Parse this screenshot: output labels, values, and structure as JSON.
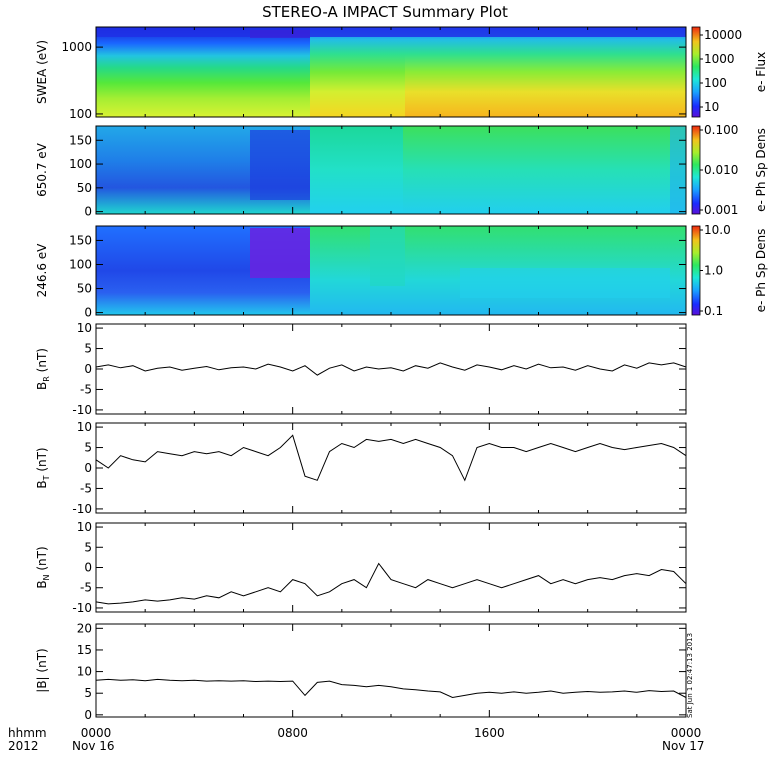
{
  "title": "STEREO-A IMPACT Summary Plot",
  "footer": {
    "hhmm_label": "hhmm",
    "year_label": "2012",
    "x_ticks": [
      "0000",
      "0800",
      "1600",
      "0000"
    ],
    "date_start": "Nov 16",
    "date_end": "Nov 17"
  },
  "timestamp": "Sat Jun 1 02:47:13 2013",
  "chart_data": [
    {
      "type": "heatmap",
      "ylabel": "SWEA (eV)",
      "yscale": "log",
      "ylim": [
        90,
        2000
      ],
      "yticks": [
        "1000",
        "100"
      ],
      "colorbar_label": "e- Flux",
      "colorbar_scale": "log",
      "colorbar_ticks": [
        "10000",
        "1000",
        "100",
        "10"
      ],
      "x_hours": [
        0,
        8,
        24
      ],
      "description_bands": [
        {
          "t_start": 0,
          "t_end": 8.3,
          "low_energy_level": "green-yellow",
          "high_energy_level": "blue"
        },
        {
          "t_start": 8.3,
          "t_end": 12.3,
          "low_energy_level": "yellow",
          "high_energy_level": "cyan"
        },
        {
          "t_start": 12.3,
          "t_end": 24,
          "low_energy_level": "orange",
          "high_energy_level": "cyan"
        }
      ]
    },
    {
      "type": "heatmap",
      "ylabel": "650.7 eV",
      "ylim": [
        -5,
        180
      ],
      "yticks": [
        "150",
        "100",
        "50",
        "0"
      ],
      "colorbar_label": "e- Ph Sp Dens",
      "colorbar_scale": "log",
      "colorbar_ticks": [
        "0.100",
        "0.010",
        "0.001"
      ]
    },
    {
      "type": "heatmap",
      "ylabel": "246.6 eV",
      "ylim": [
        -5,
        180
      ],
      "yticks": [
        "150",
        "100",
        "50",
        "0"
      ],
      "colorbar_label": "e- Ph Sp Dens",
      "colorbar_scale": "log",
      "colorbar_ticks": [
        "10.0",
        "1.0",
        "0.1"
      ]
    },
    {
      "type": "line",
      "ylabel_main": "B",
      "ylabel_sub": "R",
      "ylabel_unit": "(nT)",
      "ylim": [
        -11,
        11
      ],
      "yticks": [
        "10",
        "5",
        "0",
        "-5",
        "-10"
      ],
      "x": [
        0,
        0.5,
        1,
        1.5,
        2,
        2.5,
        3,
        3.5,
        4,
        4.5,
        5,
        5.5,
        6,
        6.5,
        7,
        7.5,
        8,
        8.5,
        9,
        9.5,
        10,
        10.5,
        11,
        11.5,
        12,
        12.5,
        13,
        13.5,
        14,
        14.5,
        15,
        15.5,
        16,
        16.5,
        17,
        17.5,
        18,
        18.5,
        19,
        19.5,
        20,
        20.5,
        21,
        21.5,
        22,
        22.5,
        23,
        23.5,
        24
      ],
      "y": [
        0.5,
        1,
        0.3,
        0.8,
        -0.5,
        0.2,
        0.5,
        -0.3,
        0.2,
        0.6,
        -0.2,
        0.3,
        0.5,
        0,
        1.2,
        0.5,
        -0.5,
        0.8,
        -1.5,
        0.2,
        1,
        -0.5,
        0.5,
        0,
        0.3,
        -0.5,
        0.8,
        0.2,
        1.5,
        0.5,
        -0.3,
        1,
        0.5,
        -0.2,
        0.8,
        0,
        1.2,
        0.3,
        0.5,
        -0.3,
        0.8,
        0,
        -0.5,
        1,
        0.2,
        1.5,
        1,
        1.5,
        0.5
      ]
    },
    {
      "type": "line",
      "ylabel_main": "B",
      "ylabel_sub": "T",
      "ylabel_unit": "(nT)",
      "ylim": [
        -11,
        11
      ],
      "yticks": [
        "10",
        "5",
        "0",
        "-5",
        "-10"
      ],
      "x": [
        0,
        0.5,
        1,
        1.5,
        2,
        2.5,
        3,
        3.5,
        4,
        4.5,
        5,
        5.5,
        6,
        6.5,
        7,
        7.5,
        8,
        8.5,
        9,
        9.5,
        10,
        10.5,
        11,
        11.5,
        12,
        12.5,
        13,
        13.5,
        14,
        14.5,
        15,
        15.5,
        16,
        16.5,
        17,
        17.5,
        18,
        18.5,
        19,
        19.5,
        20,
        20.5,
        21,
        21.5,
        22,
        22.5,
        23,
        23.5,
        24
      ],
      "y": [
        2,
        0,
        3,
        2,
        1.5,
        4,
        3.5,
        3,
        4,
        3.5,
        4,
        3,
        5,
        4,
        3,
        5,
        8,
        -2,
        -3,
        4,
        6,
        5,
        7,
        6.5,
        7,
        6,
        7,
        6,
        5,
        3,
        -3,
        5,
        6,
        5,
        5,
        4,
        5,
        6,
        5,
        4,
        5,
        6,
        5,
        4.5,
        5,
        5.5,
        6,
        5,
        3
      ]
    },
    {
      "type": "line",
      "ylabel_main": "B",
      "ylabel_sub": "N",
      "ylabel_unit": "(nT)",
      "ylim": [
        -11,
        11
      ],
      "yticks": [
        "10",
        "5",
        "0",
        "-5",
        "-10"
      ],
      "x": [
        0,
        0.5,
        1,
        1.5,
        2,
        2.5,
        3,
        3.5,
        4,
        4.5,
        5,
        5.5,
        6,
        6.5,
        7,
        7.5,
        8,
        8.5,
        9,
        9.5,
        10,
        10.5,
        11,
        11.5,
        12,
        12.5,
        13,
        13.5,
        14,
        14.5,
        15,
        15.5,
        16,
        16.5,
        17,
        17.5,
        18,
        18.5,
        19,
        19.5,
        20,
        20.5,
        21,
        21.5,
        22,
        22.5,
        23,
        23.5,
        24
      ],
      "y": [
        -8.5,
        -9,
        -8.8,
        -8.5,
        -8,
        -8.3,
        -8,
        -7.5,
        -7.8,
        -7,
        -7.5,
        -6,
        -7,
        -6,
        -5,
        -6,
        -3,
        -4,
        -7,
        -6,
        -4,
        -3,
        -5,
        1,
        -3,
        -4,
        -5,
        -3,
        -4,
        -5,
        -4,
        -3,
        -4,
        -5,
        -4,
        -3,
        -2,
        -4,
        -3,
        -4,
        -3,
        -2.5,
        -3,
        -2,
        -1.5,
        -2,
        -0.5,
        -1,
        -4
      ]
    },
    {
      "type": "line",
      "ylabel_main": "|B|",
      "ylabel_sub": "",
      "ylabel_unit": "(nT)",
      "ylim": [
        -0.5,
        21
      ],
      "yticks": [
        "20",
        "15",
        "10",
        "5",
        "0"
      ],
      "x": [
        0,
        0.5,
        1,
        1.5,
        2,
        2.5,
        3,
        3.5,
        4,
        4.5,
        5,
        5.5,
        6,
        6.5,
        7,
        7.5,
        8,
        8.5,
        9,
        9.5,
        10,
        10.5,
        11,
        11.5,
        12,
        12.5,
        13,
        13.5,
        14,
        14.5,
        15,
        15.5,
        16,
        16.5,
        17,
        17.5,
        18,
        18.5,
        19,
        19.5,
        20,
        20.5,
        21,
        21.5,
        22,
        22.5,
        23,
        23.5,
        24
      ],
      "y": [
        8,
        8.2,
        8,
        8.1,
        7.9,
        8.2,
        8,
        7.9,
        8,
        7.8,
        7.9,
        7.8,
        7.9,
        7.7,
        7.8,
        7.7,
        7.8,
        4.5,
        7.5,
        7.8,
        7,
        6.8,
        6.5,
        6.8,
        6.5,
        6,
        5.8,
        5.5,
        5.3,
        4,
        4.5,
        5,
        5.2,
        5,
        5.3,
        5,
        5.2,
        5.5,
        5,
        5.2,
        5.4,
        5.2,
        5.3,
        5.5,
        5.2,
        5.6,
        5.4,
        5.5,
        4
      ]
    }
  ]
}
